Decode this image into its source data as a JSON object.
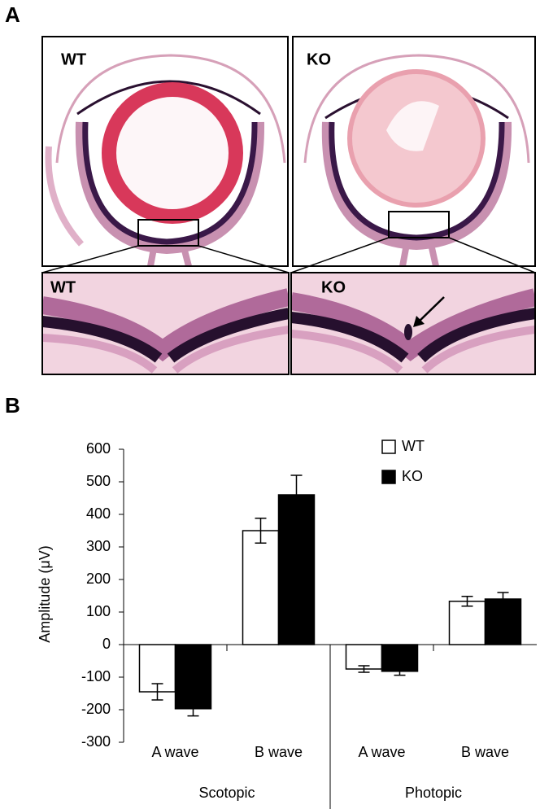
{
  "panel_a": {
    "label": "A",
    "top_left": "WT",
    "top_right": "KO",
    "bottom_left": "WT",
    "bottom_right": "KO"
  },
  "chart_data": {
    "type": "bar",
    "panel_label": "B",
    "y_label": "Amplitude (μV)",
    "categories": [
      "A wave",
      "B wave",
      "A wave",
      "B wave"
    ],
    "groups": [
      "Scotopic",
      "Photopic"
    ],
    "series": [
      {
        "name": "WT",
        "color": "#ffffff",
        "values": [
          -145,
          350,
          -75,
          133
        ],
        "errors": [
          25,
          38,
          10,
          15
        ]
      },
      {
        "name": "KO",
        "color": "#000000",
        "values": [
          -197,
          460,
          -82,
          140
        ],
        "errors": [
          22,
          60,
          12,
          20
        ]
      }
    ],
    "ylim": [
      -300,
      600
    ],
    "yticks": [
      -300,
      -200,
      -100,
      0,
      100,
      200,
      300,
      400,
      500,
      600
    ],
    "legend": "top-right"
  }
}
